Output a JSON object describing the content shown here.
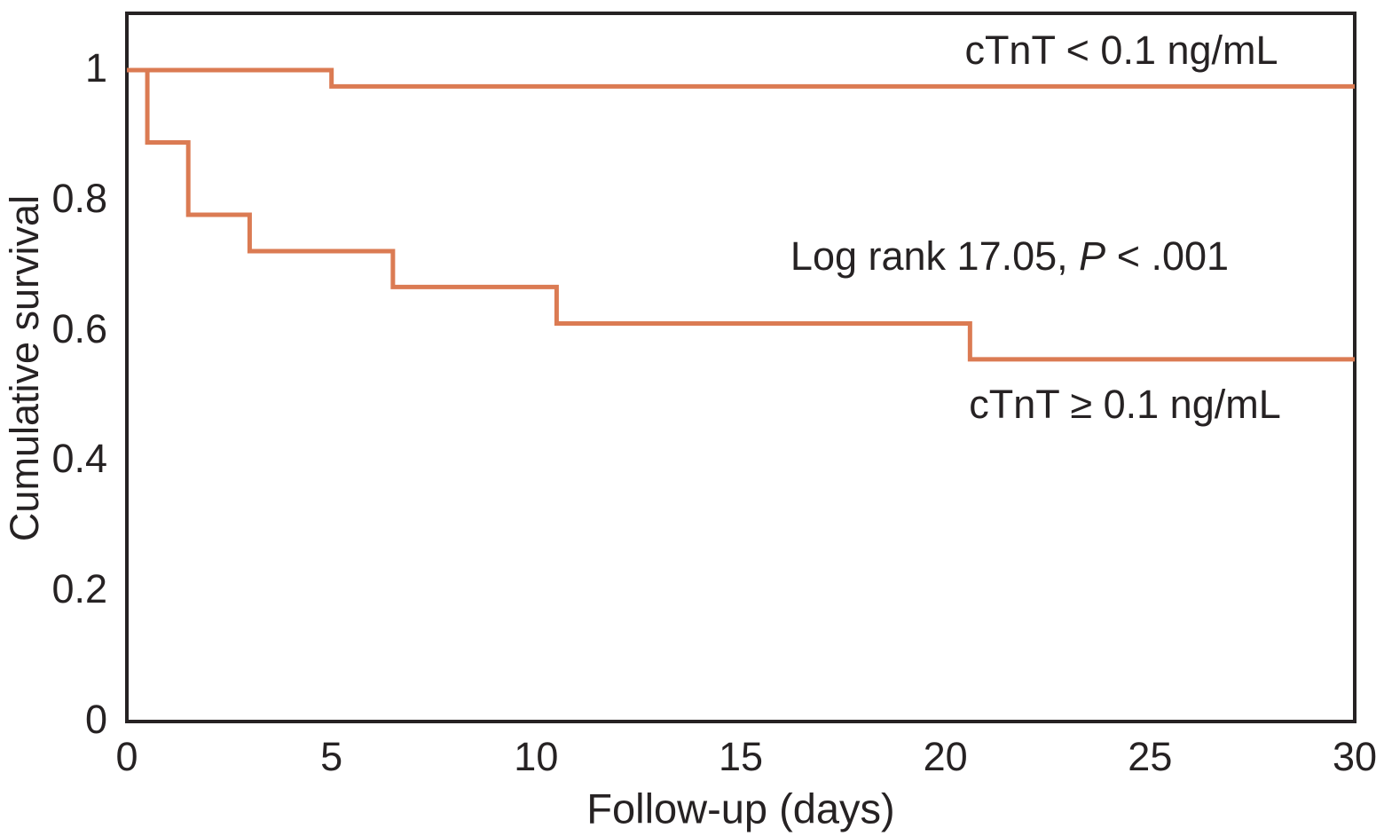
{
  "figure": {
    "background": "#ffffff",
    "axis_color": "#262223",
    "text_color": "#262223",
    "curve_color": "#DB7B53"
  },
  "chart_data": {
    "type": "line",
    "subtype": "kaplan-meier-step",
    "title": "",
    "xlabel": "Follow-up (days)",
    "ylabel": "Cumulative survival",
    "xlim": [
      0,
      30
    ],
    "ylim": [
      0,
      1.09
    ],
    "grid": false,
    "legend_position": "inline-annotations",
    "xticks": {
      "values": [
        0,
        5,
        10,
        15,
        20,
        25,
        30
      ],
      "labels": [
        "0",
        "5",
        "10",
        "15",
        "20",
        "25",
        "30"
      ]
    },
    "yticks": {
      "values": [
        1,
        0.8,
        0.6,
        0.4,
        0.2,
        0
      ],
      "labels": [
        "1",
        "0.8",
        "0.6",
        "0.4",
        "0.2",
        "0"
      ]
    },
    "series": [
      {
        "name": "cTnT < 0.1 ng/mL",
        "step_points": [
          [
            0,
            1
          ],
          [
            5,
            0.975
          ]
        ],
        "end_x": 30
      },
      {
        "name": "cTnT ≥ 0.1 ng/mL",
        "step_points": [
          [
            0,
            1
          ],
          [
            0.5,
            0.889
          ],
          [
            1.5,
            0.778
          ],
          [
            3,
            0.722
          ],
          [
            6.5,
            0.667
          ],
          [
            10.5,
            0.611
          ],
          [
            20.6,
            0.556
          ]
        ],
        "end_x": 30
      }
    ],
    "annotations": {
      "low_group_label": "cTnT < 0.1 ng/mL",
      "high_group_label": "cTnT ≥ 0.1 ng/mL",
      "logrank_prefix": "Log rank 17.05, ",
      "logrank_p": "P",
      "logrank_suffix": " < .001"
    }
  }
}
